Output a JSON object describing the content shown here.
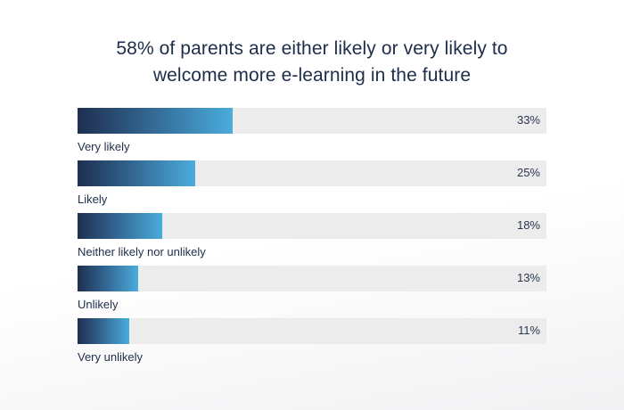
{
  "chart_data": {
    "type": "bar",
    "orientation": "horizontal",
    "title": "58% of parents are either likely or very likely to welcome more e-learning in the future",
    "title_lines": [
      "58% of parents are either likely or very likely to",
      "welcome more e-learning in the future"
    ],
    "categories": [
      "Very likely",
      "Likely",
      "Neither likely nor unlikely",
      "Unlikely",
      "Very unlikely"
    ],
    "values": [
      33,
      25,
      18,
      13,
      11
    ],
    "value_labels": [
      "33%",
      "25%",
      "18%",
      "13%",
      "11%"
    ],
    "xlim": [
      0,
      100
    ],
    "grid": false,
    "legend": "none",
    "bar_gradient": [
      "#1e2f4f",
      "#4bacdc"
    ],
    "track_color": "#ececec"
  }
}
